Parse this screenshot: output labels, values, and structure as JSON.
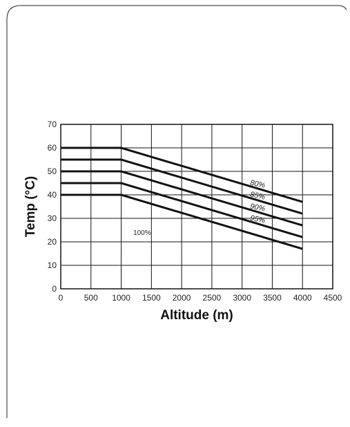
{
  "chart_data": {
    "type": "line",
    "title": "",
    "xlabel": "Altitude (m)",
    "ylabel": "Temp (°C)",
    "xlim": [
      0,
      4500
    ],
    "ylim": [
      0,
      70
    ],
    "xticks": [
      0,
      500,
      1000,
      1500,
      2000,
      2500,
      3000,
      3500,
      4000,
      4500
    ],
    "yticks": [
      0,
      10,
      20,
      30,
      40,
      50,
      60,
      70
    ],
    "grid": true,
    "series": [
      {
        "name": "80%",
        "x": [
          0,
          1000,
          4000
        ],
        "y": [
          60,
          60,
          37
        ]
      },
      {
        "name": "85%",
        "x": [
          0,
          1000,
          4000
        ],
        "y": [
          55,
          55,
          32
        ]
      },
      {
        "name": "90%",
        "x": [
          0,
          1000,
          4000
        ],
        "y": [
          50,
          50,
          27
        ]
      },
      {
        "name": "95%",
        "x": [
          0,
          1000,
          4000
        ],
        "y": [
          45,
          45,
          22
        ]
      },
      {
        "name": "",
        "x": [
          0,
          1000,
          4000
        ],
        "y": [
          40,
          40,
          17
        ]
      }
    ],
    "annotations": [
      {
        "text": "100%",
        "x": 1200,
        "y": 23
      }
    ]
  },
  "colors": {
    "line": "#111111",
    "grid": "#111111",
    "frame_border": "#222222"
  }
}
